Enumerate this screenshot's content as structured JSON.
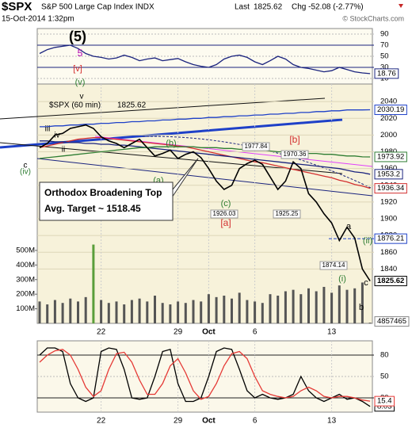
{
  "header": {
    "symbol": "$SPX",
    "name": "S&P 500 Large Cap Index INDX",
    "datetime": "15-Oct-2014 1:32pm",
    "last_label": "Last",
    "change": "Chg -52.08 (-2.77%)",
    "credit": "© StockCharts.com"
  },
  "chart_data": [
    {
      "type": "line",
      "panel": "rsi",
      "ylim": [
        0,
        100
      ],
      "yticks": [
        90,
        70,
        50,
        30,
        10
      ],
      "series": [
        {
          "name": "RSI",
          "color": "#1a237e",
          "values": [
            55,
            62,
            66,
            68,
            70,
            64,
            55,
            50,
            48,
            45,
            47,
            52,
            48,
            42,
            45,
            47,
            42,
            44,
            46,
            40,
            35,
            32,
            30,
            35,
            45,
            50,
            52,
            48,
            40,
            35,
            42,
            50,
            45,
            35,
            30,
            28,
            25,
            22,
            24,
            30,
            26,
            22,
            20,
            18.76
          ]
        }
      ]
    },
    {
      "type": "line",
      "panel": "price",
      "label": "$SPX (60 min)",
      "categories": [
        null,
        null,
        null,
        null,
        null,
        null,
        null,
        null,
        "22",
        null,
        null,
        null,
        null,
        null,
        null,
        null,
        null,
        null,
        "29",
        null,
        null,
        null,
        "Oct",
        null,
        null,
        null,
        null,
        null,
        "6",
        null,
        null,
        null,
        null,
        null,
        null,
        null,
        null,
        null,
        "13",
        null,
        null,
        null,
        null,
        null
      ],
      "ylim": [
        1775,
        2061
      ],
      "yticks": [
        2040,
        2020,
        2000,
        1980,
        1960,
        1940,
        1920,
        1900,
        1880,
        1860,
        1840
      ],
      "y2lim": [
        0,
        1640000000
      ],
      "y2ticks": [
        {
          "value": 500000000,
          "label": "500M"
        },
        {
          "value": 400000000,
          "label": "400M"
        },
        {
          "value": 300000000,
          "label": "300M"
        },
        {
          "value": 200000000,
          "label": "200M"
        },
        {
          "value": 100000000,
          "label": "100M"
        }
      ],
      "series": [
        {
          "name": "$SPX",
          "color": "#000000",
          "values": [
            1985,
            1990,
            2000,
            2002,
            2008,
            2010,
            2012,
            2008,
            1998,
            1993,
            1990,
            1985,
            1990,
            1995,
            1985,
            1975,
            1978,
            1982,
            1972,
            1977,
            1980,
            1973,
            1960,
            1945,
            1935,
            1940,
            1960,
            1966,
            1970,
            1965,
            1950,
            1935,
            1945,
            1968,
            1960,
            1930,
            1920,
            1906,
            1895,
            1874,
            1890,
            1877,
            1840,
            1825.62
          ]
        },
        {
          "name": "MA blue",
          "color": "#1e40c8",
          "values": [
            2010,
            2010,
            2011,
            2011,
            2012,
            2012,
            2013,
            2013,
            2014,
            2014,
            2015,
            2015,
            2016,
            2016,
            2017,
            2017,
            2018,
            2018,
            2019,
            2019,
            2020,
            2020,
            2021,
            2021,
            2022,
            2022,
            2023,
            2023,
            2024,
            2024,
            2025,
            2025,
            2026,
            2026,
            2027,
            2027,
            2028,
            2028,
            2029,
            2029,
            2030,
            2030,
            2030,
            2030.19
          ]
        },
        {
          "name": "MA green",
          "color": "#2e7d32",
          "values": [
            1972,
            1973,
            1974,
            1975,
            1976,
            1977,
            1978,
            1979,
            1980,
            1981,
            1982,
            1983,
            1984,
            1985,
            1985,
            1986,
            1986,
            1986,
            1986,
            1986,
            1986,
            1985,
            1985,
            1985,
            1984,
            1984,
            1983,
            1983,
            1982,
            1982,
            1981,
            1980,
            1980,
            1979,
            1979,
            1978,
            1978,
            1977,
            1977,
            1976,
            1975,
            1975,
            1974,
            1973.92
          ]
        },
        {
          "name": "MA navy",
          "color": "#1a237e",
          "values": [
            1993,
            1993,
            1992,
            1992,
            1991,
            1991,
            1990,
            1990,
            1989,
            1989,
            1988,
            1988,
            1987,
            1986,
            1985,
            1984,
            1983,
            1982,
            1981,
            1980,
            1979,
            1978,
            1977,
            1976,
            1975,
            1974,
            1973,
            1972,
            1971,
            1970,
            1969,
            1968,
            1967,
            1966,
            1965,
            1964,
            1963,
            1962,
            1961,
            1960,
            1958,
            1956,
            1955,
            1953.2
          ]
        },
        {
          "name": "MA red",
          "color": "#d32f2f",
          "values": [
            1985,
            1987,
            1989,
            1991,
            1993,
            1995,
            1996,
            1997,
            1997,
            1996,
            1995,
            1994,
            1993,
            1992,
            1991,
            1990,
            1989,
            1988,
            1987,
            1986,
            1984,
            1982,
            1980,
            1978,
            1976,
            1974,
            1972,
            1970,
            1968,
            1967,
            1965,
            1963,
            1961,
            1959,
            1957,
            1955,
            1953,
            1951,
            1949,
            1946,
            1944,
            1941,
            1939,
            1936.34
          ]
        },
        {
          "name": "Volume",
          "color": "#555555",
          "axis": "y2",
          "values": [
            150000000,
            130000000,
            160000000,
            140000000,
            170000000,
            150000000,
            180000000,
            540000000,
            160000000,
            140000000,
            150000000,
            130000000,
            160000000,
            170000000,
            150000000,
            190000000,
            140000000,
            130000000,
            150000000,
            140000000,
            160000000,
            150000000,
            200000000,
            180000000,
            190000000,
            170000000,
            210000000,
            160000000,
            150000000,
            140000000,
            200000000,
            190000000,
            220000000,
            230000000,
            200000000,
            240000000,
            220000000,
            250000000,
            210000000,
            260000000,
            230000000,
            240000000,
            280000000,
            4857465
          ]
        }
      ],
      "reference_line": 1876.21,
      "annotations": [
        {
          "text": "(5)",
          "color": "#000000"
        },
        {
          "text": "5",
          "color": "#b000b0"
        },
        {
          "text": "[v]",
          "color": "#d32f2f"
        },
        {
          "text": "(v)",
          "color": "#2e7d32"
        },
        {
          "text": "v",
          "color": "#000000"
        },
        {
          "text": "iv",
          "color": "#000000"
        },
        {
          "text": "iii",
          "color": "#000000"
        },
        {
          "text": "ii",
          "color": "#000000"
        },
        {
          "text": "c",
          "color": "#000000"
        },
        {
          "text": "(iv)",
          "color": "#2e7d32"
        },
        {
          "text": "(b)",
          "color": "#2e7d32"
        },
        {
          "text": "(a)",
          "color": "#2e7d32"
        },
        {
          "text": "(c)",
          "color": "#2e7d32"
        },
        {
          "text": "[a]",
          "color": "#d32f2f"
        },
        {
          "text": "[b]",
          "color": "#d32f2f"
        },
        {
          "text": "a",
          "color": "#000000"
        },
        {
          "text": "(ii)",
          "color": "#2e7d32"
        },
        {
          "text": "(i)",
          "color": "#2e7d32"
        },
        {
          "text": "c",
          "color": "#000000"
        },
        {
          "text": "b",
          "color": "#000000"
        },
        {
          "text": "1977.84",
          "color": "#000000"
        },
        {
          "text": "1970.36",
          "color": "#000000"
        },
        {
          "text": "1926.03",
          "color": "#000000"
        },
        {
          "text": "1925.25",
          "color": "#000000"
        },
        {
          "text": "1874.14",
          "color": "#000000"
        }
      ],
      "callout": [
        "Orthodox Broadening Top",
        "Avg. Target ~ 1518.45"
      ]
    },
    {
      "type": "line",
      "panel": "stochastic",
      "categories": [
        null,
        null,
        null,
        null,
        null,
        null,
        null,
        null,
        "22",
        null,
        null,
        null,
        null,
        null,
        null,
        null,
        null,
        null,
        "29",
        null,
        null,
        null,
        "Oct",
        null,
        null,
        null,
        null,
        null,
        "6",
        null,
        null,
        null,
        null,
        null,
        null,
        null,
        null,
        null,
        "13",
        null,
        null,
        null,
        null,
        null
      ],
      "ylim": [
        0,
        100
      ],
      "yticks": [
        80,
        50,
        20
      ],
      "series": [
        {
          "name": "%D",
          "color": "#e53935",
          "values": [
            70,
            80,
            86,
            88,
            80,
            60,
            35,
            22,
            30,
            60,
            82,
            84,
            70,
            45,
            25,
            25,
            40,
            65,
            75,
            55,
            30,
            18,
            22,
            40,
            65,
            82,
            85,
            75,
            50,
            30,
            25,
            22,
            20,
            22,
            30,
            35,
            30,
            22,
            20,
            22,
            22,
            20,
            17,
            15.4
          ]
        },
        {
          "name": "%K",
          "color": "#000000",
          "values": [
            80,
            90,
            90,
            85,
            40,
            20,
            15,
            20,
            85,
            90,
            88,
            60,
            20,
            18,
            20,
            50,
            85,
            88,
            40,
            15,
            15,
            20,
            50,
            85,
            90,
            88,
            60,
            30,
            20,
            25,
            20,
            18,
            20,
            25,
            50,
            30,
            20,
            15,
            20,
            25,
            18,
            20,
            15,
            8.03
          ]
        }
      ]
    }
  ]
}
